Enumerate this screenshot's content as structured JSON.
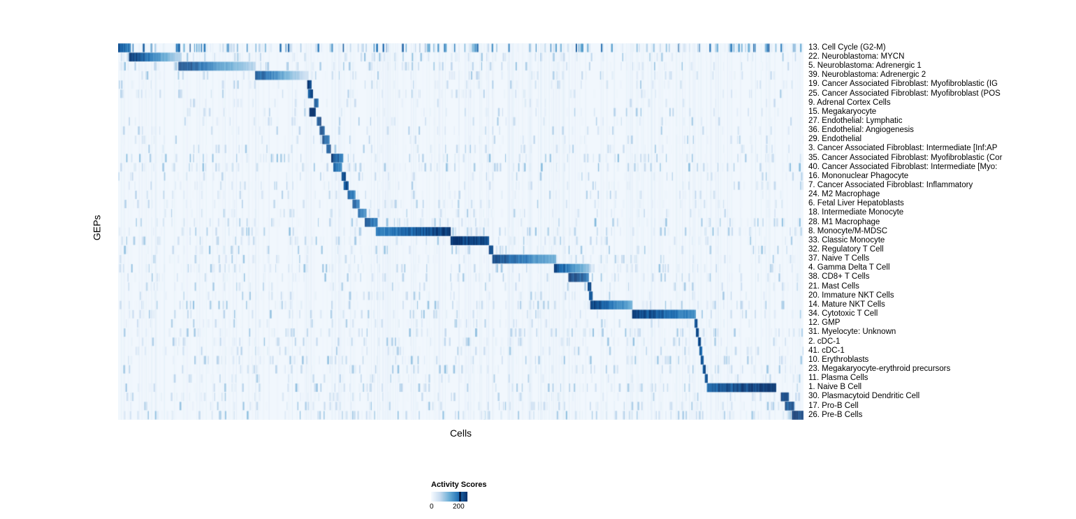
{
  "figure": {
    "xlabel": "Cells",
    "ylabel": "GEPs"
  },
  "chart_data": {
    "type": "heatmap",
    "title": "",
    "xlabel": "Cells",
    "ylabel": "GEPs",
    "n_rows": 41,
    "x_axis_tick_labels": [],
    "background_intensity": 0.03,
    "legend": {
      "title": "Activity Scores",
      "min_label": "0",
      "max_label": "200",
      "min_value": 0,
      "max_value": 200,
      "tick_position": 0.78,
      "tick_color": "#041f4a",
      "colormap": [
        "#f7fbff",
        "#c6dbef",
        "#6baed6",
        "#2171b5",
        "#08306b"
      ]
    },
    "rows": [
      {
        "label": "13. Cell Cycle (G2-M)",
        "start": 0.0,
        "end": 0.018,
        "peak": 0.85,
        "fade": 0.2,
        "noise": 0.6,
        "amp": 0.85
      },
      {
        "label": "22. Neuroblastoma: MYCN",
        "start": 0.016,
        "end": 0.092,
        "peak": 1.0,
        "fade": 0.75,
        "noise": 0.3,
        "amp": 0.4
      },
      {
        "label": "5. Neuroblastoma: Adrenergic 1",
        "start": 0.088,
        "end": 0.2,
        "peak": 0.95,
        "fade": 0.7,
        "noise": 0.3,
        "amp": 0.4
      },
      {
        "label": "39. Neuroblastoma: Adrenergic 2",
        "start": 0.2,
        "end": 0.277,
        "peak": 0.9,
        "fade": 0.8,
        "noise": 0.25,
        "amp": 0.35
      },
      {
        "label": "19. Cancer Associated Fibroblast: Myofibroblastic (IG",
        "start": 0.276,
        "end": 0.282,
        "peak": 0.92,
        "fade": 0.0,
        "noise": 0.18,
        "amp": 0.3
      },
      {
        "label": "25. Cancer Associated Fibroblast: Myofibroblast (POS",
        "start": 0.277,
        "end": 0.284,
        "peak": 0.88,
        "fade": 0.0,
        "noise": 0.18,
        "amp": 0.3
      },
      {
        "label": "9. Adrenal Cortex Cells",
        "start": 0.286,
        "end": 0.292,
        "peak": 0.8,
        "fade": 0.0,
        "noise": 0.12,
        "amp": 0.25
      },
      {
        "label": "15. Megakaryocyte",
        "start": 0.279,
        "end": 0.288,
        "peak": 1.0,
        "fade": 0.0,
        "noise": 0.15,
        "amp": 0.3
      },
      {
        "label": "27. Endothelial: Lymphatic",
        "start": 0.29,
        "end": 0.296,
        "peak": 0.9,
        "fade": 0.0,
        "noise": 0.15,
        "amp": 0.3
      },
      {
        "label": "36. Endothelial: Angiogenesis",
        "start": 0.294,
        "end": 0.301,
        "peak": 0.85,
        "fade": 0.0,
        "noise": 0.15,
        "amp": 0.3
      },
      {
        "label": "29. Endothelial",
        "start": 0.298,
        "end": 0.308,
        "peak": 0.9,
        "fade": 0.2,
        "noise": 0.15,
        "amp": 0.3
      },
      {
        "label": "3. Cancer Associated Fibroblast: Intermediate [Inf:AP",
        "start": 0.304,
        "end": 0.31,
        "peak": 0.85,
        "fade": 0.0,
        "noise": 0.2,
        "amp": 0.35
      },
      {
        "label": "35. Cancer Associated Fibroblast: Myofibroblastic (Cor",
        "start": 0.311,
        "end": 0.328,
        "peak": 0.95,
        "fade": 0.3,
        "noise": 0.3,
        "amp": 0.4
      },
      {
        "label": "40. Cancer Associated Fibroblast: Intermediate [Myo:",
        "start": 0.314,
        "end": 0.326,
        "peak": 0.8,
        "fade": 0.2,
        "noise": 0.35,
        "amp": 0.4
      },
      {
        "label": "16. Mononuclear Phagocyte",
        "start": 0.326,
        "end": 0.332,
        "peak": 0.85,
        "fade": 0.0,
        "noise": 0.18,
        "amp": 0.3
      },
      {
        "label": "7. Cancer Associated Fibroblast: Inflammatory",
        "start": 0.329,
        "end": 0.336,
        "peak": 0.85,
        "fade": 0.0,
        "noise": 0.2,
        "amp": 0.3
      },
      {
        "label": "24. M2 Macrophage",
        "start": 0.335,
        "end": 0.346,
        "peak": 0.8,
        "fade": 0.2,
        "noise": 0.2,
        "amp": 0.3
      },
      {
        "label": "6. Fetal Liver Hepatoblasts",
        "start": 0.342,
        "end": 0.352,
        "peak": 0.85,
        "fade": 0.2,
        "noise": 0.18,
        "amp": 0.3
      },
      {
        "label": "18. Intermediate Monocyte",
        "start": 0.35,
        "end": 0.362,
        "peak": 0.8,
        "fade": 0.2,
        "noise": 0.2,
        "amp": 0.3
      },
      {
        "label": "28. M1 Macrophage",
        "start": 0.36,
        "end": 0.378,
        "peak": 0.85,
        "fade": 0.2,
        "noise": 0.3,
        "amp": 0.4
      },
      {
        "label": "8. Monocyte/M-MDSC",
        "start": 0.376,
        "end": 0.485,
        "peak": 0.65,
        "fade": -0.5,
        "noise": 0.3,
        "amp": 0.4
      },
      {
        "label": "33. Classic Monocyte",
        "start": 0.485,
        "end": 0.541,
        "peak": 1.0,
        "fade": 0.15,
        "noise": 0.25,
        "amp": 0.35
      },
      {
        "label": "32. Regulatory T Cell",
        "start": 0.541,
        "end": 0.547,
        "peak": 0.9,
        "fade": 0.0,
        "noise": 0.25,
        "amp": 0.35
      },
      {
        "label": "37. Naive T Cells",
        "start": 0.546,
        "end": 0.638,
        "peak": 0.95,
        "fade": 0.5,
        "noise": 0.25,
        "amp": 0.35
      },
      {
        "label": "4. Gamma Delta T Cell",
        "start": 0.636,
        "end": 0.687,
        "peak": 0.9,
        "fade": 0.6,
        "noise": 0.3,
        "amp": 0.35
      },
      {
        "label": "38. CD8+ T Cells",
        "start": 0.657,
        "end": 0.686,
        "peak": 0.95,
        "fade": 0.2,
        "noise": 0.25,
        "amp": 0.35
      },
      {
        "label": "21. Mast Cells",
        "start": 0.685,
        "end": 0.69,
        "peak": 0.9,
        "fade": 0.0,
        "noise": 0.18,
        "amp": 0.3
      },
      {
        "label": "20. Immature NKT Cells",
        "start": 0.687,
        "end": 0.692,
        "peak": 0.85,
        "fade": 0.0,
        "noise": 0.2,
        "amp": 0.3
      },
      {
        "label": "14. Mature NKT Cells",
        "start": 0.689,
        "end": 0.75,
        "peak": 0.95,
        "fade": 0.5,
        "noise": 0.3,
        "amp": 0.35
      },
      {
        "label": "34. Cytotoxic T Cell",
        "start": 0.75,
        "end": 0.842,
        "peak": 0.95,
        "fade": 0.35,
        "noise": 0.25,
        "amp": 0.35
      },
      {
        "label": "12. GMP",
        "start": 0.841,
        "end": 0.845,
        "peak": 0.9,
        "fade": 0.0,
        "noise": 0.18,
        "amp": 0.3
      },
      {
        "label": "31. Myelocyte: Unknown",
        "start": 0.843,
        "end": 0.847,
        "peak": 0.85,
        "fade": 0.0,
        "noise": 0.3,
        "amp": 0.35
      },
      {
        "label": "2. cDC-1",
        "start": 0.846,
        "end": 0.85,
        "peak": 0.9,
        "fade": 0.0,
        "noise": 0.3,
        "amp": 0.35
      },
      {
        "label": "41. cDC-1",
        "start": 0.848,
        "end": 0.852,
        "peak": 0.85,
        "fade": 0.0,
        "noise": 0.25,
        "amp": 0.3
      },
      {
        "label": "10. Erythroblasts",
        "start": 0.85,
        "end": 0.854,
        "peak": 0.9,
        "fade": 0.0,
        "noise": 0.3,
        "amp": 0.35
      },
      {
        "label": "23. Megakaryocyte-erythroid precursors",
        "start": 0.853,
        "end": 0.857,
        "peak": 0.85,
        "fade": 0.0,
        "noise": 0.3,
        "amp": 0.35
      },
      {
        "label": "11. Plasma Cells",
        "start": 0.856,
        "end": 0.86,
        "peak": 0.9,
        "fade": 0.0,
        "noise": 0.2,
        "amp": 0.3
      },
      {
        "label": "1. Naive B Cell",
        "start": 0.859,
        "end": 0.959,
        "peak": 0.8,
        "fade": -0.25,
        "noise": 0.3,
        "amp": 0.35
      },
      {
        "label": "30. Plasmacytoid Dendritic Cell",
        "start": 0.967,
        "end": 0.978,
        "peak": 0.95,
        "fade": 0.0,
        "noise": 0.25,
        "amp": 0.3
      },
      {
        "label": "17. Pro-B Cell",
        "start": 0.973,
        "end": 0.986,
        "peak": 0.9,
        "fade": 0.0,
        "noise": 0.3,
        "amp": 0.35
      },
      {
        "label": "26. Pre-B Cells",
        "start": 0.983,
        "end": 1.0,
        "peak": 1.0,
        "fade": 0.1,
        "noise": 0.35,
        "amp": 0.4
      }
    ]
  }
}
